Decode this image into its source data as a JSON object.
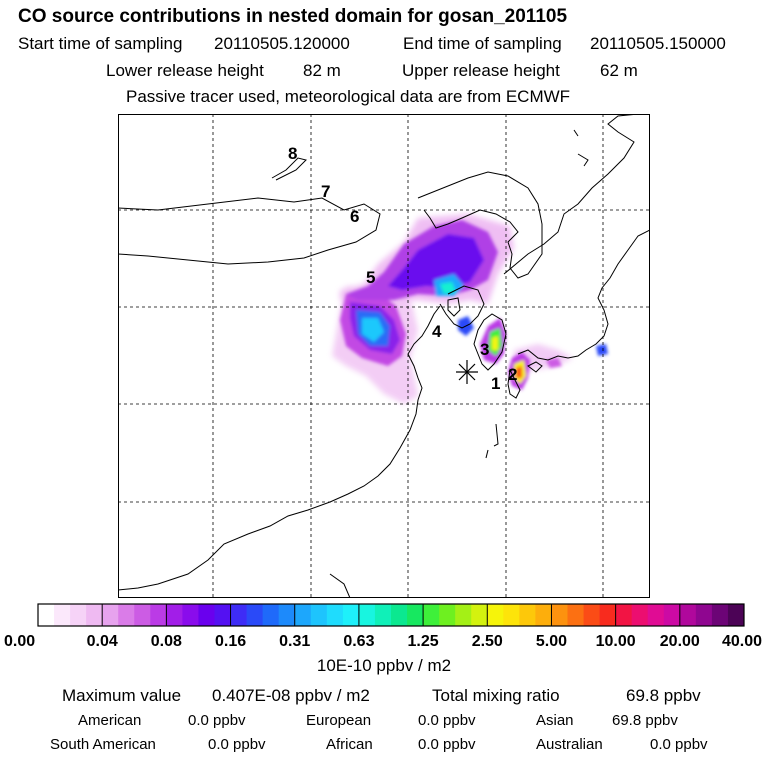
{
  "header": {
    "title": "CO  source contributions in nested domain for gosan_201105",
    "start_label": "Start time of sampling",
    "start_value": "20110505.120000",
    "end_label": "End time of sampling",
    "end_value": "20110505.150000",
    "lower_label": "Lower release height",
    "lower_value": "82 m",
    "upper_label": "Upper release height",
    "upper_value": "62 m",
    "tracer_note": "Passive tracer used, meteorological data are from ECMWF"
  },
  "map": {
    "receptor_symbol": "✳",
    "trajectory_labels": [
      "1",
      "2",
      "3",
      "4",
      "5",
      "6",
      "7",
      "8"
    ]
  },
  "colorbar": {
    "tick_labels": [
      "0.00",
      "0.04",
      "0.08",
      "0.16",
      "0.31",
      "0.63",
      "1.25",
      "2.50",
      "5.00",
      "10.00",
      "20.00",
      "40.00"
    ],
    "unit": "10E-10 ppbv / m2",
    "colors": [
      "#ffffff",
      "#fbe8fb",
      "#f6d3f7",
      "#efbaf2",
      "#e7a3ee",
      "#da7ce8",
      "#cc5ce4",
      "#bb3be6",
      "#a21ee8",
      "#8a0cec",
      "#6a00ee",
      "#5411f2",
      "#3e2cf6",
      "#2a4af8",
      "#1f6afa",
      "#1d8afb",
      "#1da7fc",
      "#1ec4fd",
      "#1fdcfd",
      "#1ef0fa",
      "#18f5e0",
      "#10f0b8",
      "#0be890",
      "#17e860",
      "#3ef03a",
      "#6ef020",
      "#a4f016",
      "#d4f20f",
      "#f6f40a",
      "#fde40a",
      "#fdc80a",
      "#fdae0c",
      "#fd920f",
      "#fc7012",
      "#fb4c16",
      "#f82b1e",
      "#f21444",
      "#ec0e70",
      "#e00c94",
      "#cc0aa4",
      "#b0089c",
      "#8f0690",
      "#6c0476",
      "#4c0356"
    ]
  },
  "stats": {
    "max_label": "Maximum value",
    "max_value": "0.407E-08 ppbv / m2",
    "total_label": "Total mixing ratio",
    "total_value": "69.8 ppbv",
    "regions": [
      {
        "name": "American",
        "value": "0.0 ppbv"
      },
      {
        "name": "European",
        "value": "0.0 ppbv"
      },
      {
        "name": "Asian",
        "value": "69.8 ppbv"
      },
      {
        "name": "South American",
        "value": "0.0 ppbv"
      },
      {
        "name": "African",
        "value": "0.0 ppbv"
      },
      {
        "name": "Australian",
        "value": "0.0 ppbv"
      }
    ]
  }
}
